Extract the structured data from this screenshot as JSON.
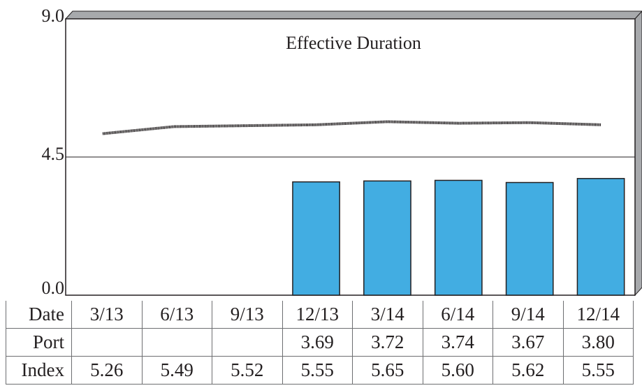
{
  "chart_data": {
    "type": "bar",
    "title": "Effective Duration",
    "categories": [
      "3/13",
      "6/13",
      "9/13",
      "12/13",
      "3/14",
      "6/14",
      "9/14",
      "12/14"
    ],
    "ylim": [
      0,
      9.0
    ],
    "yticks": [
      "0.0",
      "4.5",
      "9.0"
    ],
    "grid": "horizontal line at 4.5",
    "series": [
      {
        "name": "Port",
        "type": "bar",
        "color": "#42ade2",
        "values": [
          null,
          null,
          null,
          3.69,
          3.72,
          3.74,
          3.67,
          3.8
        ]
      },
      {
        "name": "Index",
        "type": "line",
        "color": "#231f20",
        "values": [
          5.26,
          5.49,
          5.52,
          5.55,
          5.65,
          5.6,
          5.62,
          5.55
        ]
      }
    ]
  },
  "table": {
    "header_label": "Date",
    "rows": [
      {
        "label": "Port",
        "cells": [
          "",
          "",
          "",
          "3.69",
          "3.72",
          "3.74",
          "3.67",
          "3.80"
        ]
      },
      {
        "label": "Index",
        "cells": [
          "5.26",
          "5.49",
          "5.52",
          "5.55",
          "5.65",
          "5.60",
          "5.62",
          "5.55"
        ]
      }
    ]
  }
}
